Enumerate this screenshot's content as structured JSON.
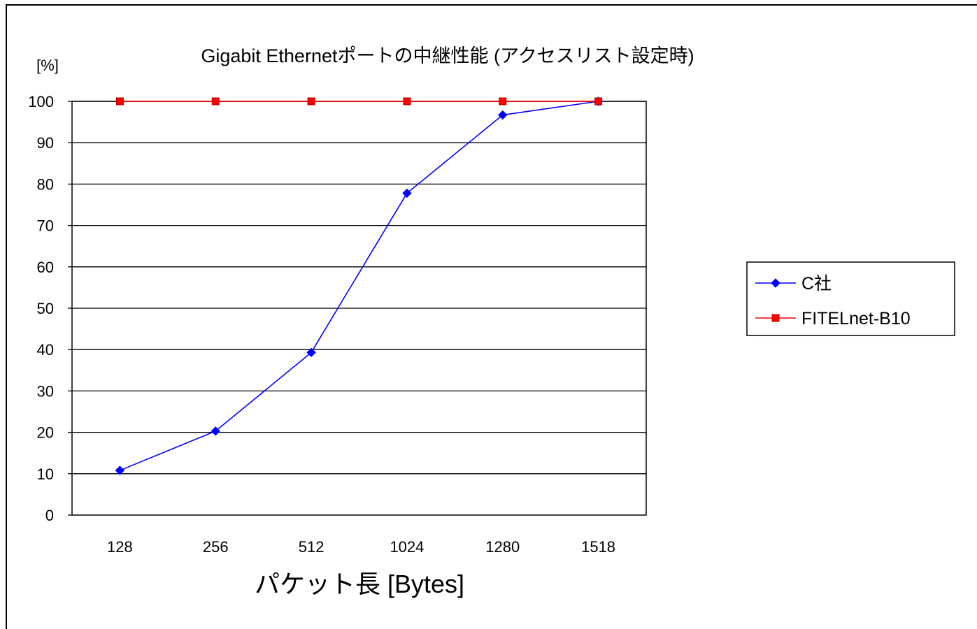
{
  "chart_data": {
    "type": "line",
    "title": "Gigabit Ethernetポートの中継性能 (アクセスリスト設定時)",
    "y_unit_label": "[%]",
    "xlabel": "パケット長 [Bytes]",
    "ylabel": "",
    "categories": [
      "128",
      "256",
      "512",
      "1024",
      "1280",
      "1518"
    ],
    "ylim": [
      0,
      100
    ],
    "yticks": [
      0,
      10,
      20,
      30,
      40,
      50,
      60,
      70,
      80,
      90,
      100
    ],
    "grid": true,
    "legend_position": "right",
    "series": [
      {
        "name": "C社",
        "values": [
          10.8,
          20.3,
          39.3,
          77.8,
          96.7,
          100
        ],
        "color": "#0000ff",
        "marker": "diamond"
      },
      {
        "name": "FITELnet-B10",
        "values": [
          100,
          100,
          100,
          100,
          100,
          100
        ],
        "color": "#ff0000",
        "marker": "square"
      }
    ]
  }
}
